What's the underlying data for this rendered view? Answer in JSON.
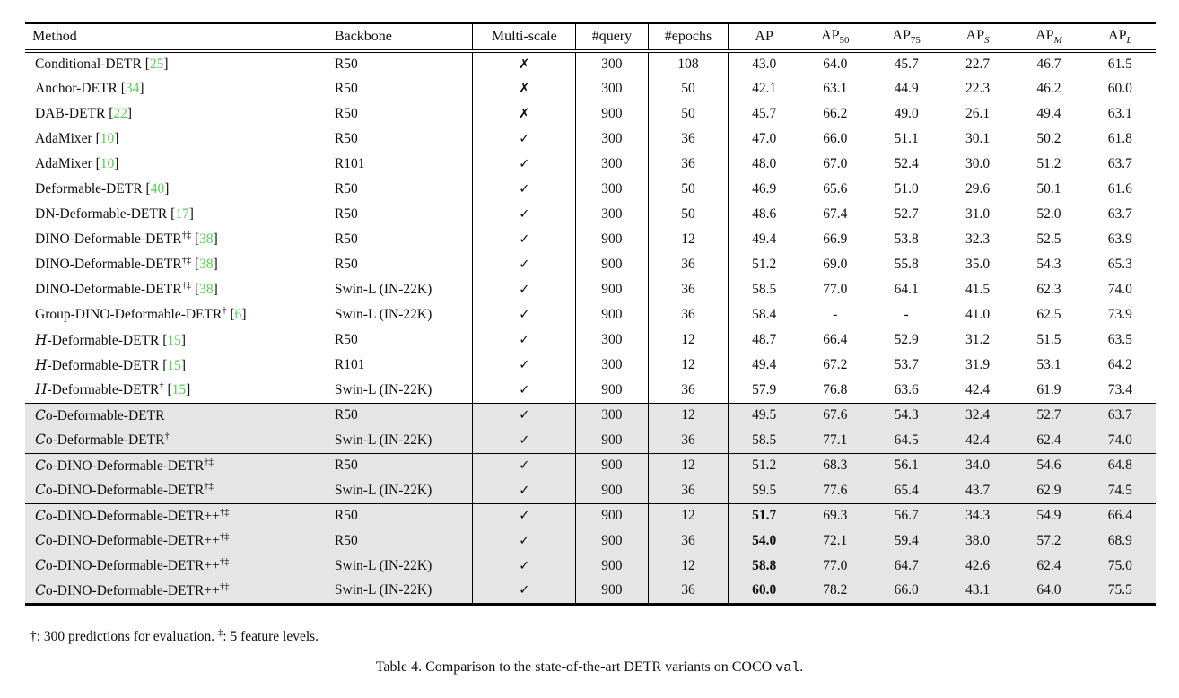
{
  "colors": {
    "citation_green": "#4fd24f",
    "row_shade": "#e5e5e5"
  },
  "table": {
    "check_glyph": "✓",
    "cross_glyph": "✗",
    "columns": [
      {
        "key": "method",
        "label": "Method",
        "sub": "",
        "sub_italic": false
      },
      {
        "key": "backbone",
        "label": "Backbone",
        "sub": "",
        "sub_italic": false
      },
      {
        "key": "multi_scale",
        "label": "Multi-scale",
        "sub": "",
        "sub_italic": false
      },
      {
        "key": "query",
        "label": "#query",
        "sub": "",
        "sub_italic": false
      },
      {
        "key": "epochs",
        "label": "#epochs",
        "sub": "",
        "sub_italic": false
      },
      {
        "key": "ap",
        "label": "AP",
        "sub": "",
        "sub_italic": false
      },
      {
        "key": "ap50",
        "label": "AP",
        "sub": "50",
        "sub_italic": false
      },
      {
        "key": "ap75",
        "label": "AP",
        "sub": "75",
        "sub_italic": false
      },
      {
        "key": "aps",
        "label": "AP",
        "sub": "S",
        "sub_italic": true
      },
      {
        "key": "apm",
        "label": "AP",
        "sub": "M",
        "sub_italic": true
      },
      {
        "key": "apl",
        "label": "AP",
        "sub": "L",
        "sub_italic": true
      }
    ],
    "rows": [
      {
        "script": "",
        "name": "Conditional-DETR",
        "sup": "",
        "cite": "25",
        "backbone": "R50",
        "multi_scale": false,
        "query": "300",
        "epochs": "108",
        "ap": "43.0",
        "ap_bold": false,
        "ap50": "64.0",
        "ap75": "45.7",
        "aps": "22.7",
        "apm": "46.7",
        "apl": "61.5",
        "shaded": false,
        "rule_above": false
      },
      {
        "script": "",
        "name": "Anchor-DETR",
        "sup": "",
        "cite": "34",
        "backbone": "R50",
        "multi_scale": false,
        "query": "300",
        "epochs": "50",
        "ap": "42.1",
        "ap_bold": false,
        "ap50": "63.1",
        "ap75": "44.9",
        "aps": "22.3",
        "apm": "46.2",
        "apl": "60.0",
        "shaded": false,
        "rule_above": false
      },
      {
        "script": "",
        "name": "DAB-DETR",
        "sup": "",
        "cite": "22",
        "backbone": "R50",
        "multi_scale": false,
        "query": "900",
        "epochs": "50",
        "ap": "45.7",
        "ap_bold": false,
        "ap50": "66.2",
        "ap75": "49.0",
        "aps": "26.1",
        "apm": "49.4",
        "apl": "63.1",
        "shaded": false,
        "rule_above": false
      },
      {
        "script": "",
        "name": "AdaMixer",
        "sup": "",
        "cite": "10",
        "backbone": "R50",
        "multi_scale": true,
        "query": "300",
        "epochs": "36",
        "ap": "47.0",
        "ap_bold": false,
        "ap50": "66.0",
        "ap75": "51.1",
        "aps": "30.1",
        "apm": "50.2",
        "apl": "61.8",
        "shaded": false,
        "rule_above": false
      },
      {
        "script": "",
        "name": "AdaMixer",
        "sup": "",
        "cite": "10",
        "backbone": "R101",
        "multi_scale": true,
        "query": "300",
        "epochs": "36",
        "ap": "48.0",
        "ap_bold": false,
        "ap50": "67.0",
        "ap75": "52.4",
        "aps": "30.0",
        "apm": "51.2",
        "apl": "63.7",
        "shaded": false,
        "rule_above": false
      },
      {
        "script": "",
        "name": "Deformable-DETR",
        "sup": "",
        "cite": "40",
        "backbone": "R50",
        "multi_scale": true,
        "query": "300",
        "epochs": "50",
        "ap": "46.9",
        "ap_bold": false,
        "ap50": "65.6",
        "ap75": "51.0",
        "aps": "29.6",
        "apm": "50.1",
        "apl": "61.6",
        "shaded": false,
        "rule_above": false
      },
      {
        "script": "",
        "name": "DN-Deformable-DETR",
        "sup": "",
        "cite": "17",
        "backbone": "R50",
        "multi_scale": true,
        "query": "300",
        "epochs": "50",
        "ap": "48.6",
        "ap_bold": false,
        "ap50": "67.4",
        "ap75": "52.7",
        "aps": "31.0",
        "apm": "52.0",
        "apl": "63.7",
        "shaded": false,
        "rule_above": false
      },
      {
        "script": "",
        "name": "DINO-Deformable-DETR",
        "sup": "†‡",
        "cite": "38",
        "backbone": "R50",
        "multi_scale": true,
        "query": "900",
        "epochs": "12",
        "ap": "49.4",
        "ap_bold": false,
        "ap50": "66.9",
        "ap75": "53.8",
        "aps": "32.3",
        "apm": "52.5",
        "apl": "63.9",
        "shaded": false,
        "rule_above": false
      },
      {
        "script": "",
        "name": "DINO-Deformable-DETR",
        "sup": "†‡",
        "cite": "38",
        "backbone": "R50",
        "multi_scale": true,
        "query": "900",
        "epochs": "36",
        "ap": "51.2",
        "ap_bold": false,
        "ap50": "69.0",
        "ap75": "55.8",
        "aps": "35.0",
        "apm": "54.3",
        "apl": "65.3",
        "shaded": false,
        "rule_above": false
      },
      {
        "script": "",
        "name": "DINO-Deformable-DETR",
        "sup": "†‡",
        "cite": "38",
        "backbone": "Swin-L (IN-22K)",
        "multi_scale": true,
        "query": "900",
        "epochs": "36",
        "ap": "58.5",
        "ap_bold": false,
        "ap50": "77.0",
        "ap75": "64.1",
        "aps": "41.5",
        "apm": "62.3",
        "apl": "74.0",
        "shaded": false,
        "rule_above": false
      },
      {
        "script": "",
        "name": "Group-DINO-Deformable-DETR",
        "sup": "†",
        "cite": "6",
        "backbone": "Swin-L (IN-22K)",
        "multi_scale": true,
        "query": "900",
        "epochs": "36",
        "ap": "58.4",
        "ap_bold": false,
        "ap50": "-",
        "ap75": "-",
        "aps": "41.0",
        "apm": "62.5",
        "apl": "73.9",
        "shaded": false,
        "rule_above": false
      },
      {
        "script": "H",
        "name": "-Deformable-DETR",
        "sup": "",
        "cite": "15",
        "backbone": "R50",
        "multi_scale": true,
        "query": "300",
        "epochs": "12",
        "ap": "48.7",
        "ap_bold": false,
        "ap50": "66.4",
        "ap75": "52.9",
        "aps": "31.2",
        "apm": "51.5",
        "apl": "63.5",
        "shaded": false,
        "rule_above": false
      },
      {
        "script": "H",
        "name": "-Deformable-DETR",
        "sup": "",
        "cite": "15",
        "backbone": "R101",
        "multi_scale": true,
        "query": "300",
        "epochs": "12",
        "ap": "49.4",
        "ap_bold": false,
        "ap50": "67.2",
        "ap75": "53.7",
        "aps": "31.9",
        "apm": "53.1",
        "apl": "64.2",
        "shaded": false,
        "rule_above": false
      },
      {
        "script": "H",
        "name": "-Deformable-DETR",
        "sup": "†",
        "cite": "15",
        "backbone": "Swin-L (IN-22K)",
        "multi_scale": true,
        "query": "900",
        "epochs": "36",
        "ap": "57.9",
        "ap_bold": false,
        "ap50": "76.8",
        "ap75": "63.6",
        "aps": "42.4",
        "apm": "61.9",
        "apl": "73.4",
        "shaded": false,
        "rule_above": false
      },
      {
        "script": "C",
        "name": "o-Deformable-DETR",
        "sup": "",
        "cite": "",
        "backbone": "R50",
        "multi_scale": true,
        "query": "300",
        "epochs": "12",
        "ap": "49.5",
        "ap_bold": false,
        "ap50": "67.6",
        "ap75": "54.3",
        "aps": "32.4",
        "apm": "52.7",
        "apl": "63.7",
        "shaded": true,
        "rule_above": true
      },
      {
        "script": "C",
        "name": "o-Deformable-DETR",
        "sup": "†",
        "cite": "",
        "backbone": "Swin-L (IN-22K)",
        "multi_scale": true,
        "query": "900",
        "epochs": "36",
        "ap": "58.5",
        "ap_bold": false,
        "ap50": "77.1",
        "ap75": "64.5",
        "aps": "42.4",
        "apm": "62.4",
        "apl": "74.0",
        "shaded": true,
        "rule_above": false
      },
      {
        "script": "C",
        "name": "o-DINO-Deformable-DETR",
        "sup": "†‡",
        "cite": "",
        "backbone": "R50",
        "multi_scale": true,
        "query": "900",
        "epochs": "12",
        "ap": "51.2",
        "ap_bold": false,
        "ap50": "68.3",
        "ap75": "56.1",
        "aps": "34.0",
        "apm": "54.6",
        "apl": "64.8",
        "shaded": true,
        "rule_above": true
      },
      {
        "script": "C",
        "name": "o-DINO-Deformable-DETR",
        "sup": "†‡",
        "cite": "",
        "backbone": "Swin-L (IN-22K)",
        "multi_scale": true,
        "query": "900",
        "epochs": "36",
        "ap": "59.5",
        "ap_bold": false,
        "ap50": "77.6",
        "ap75": "65.4",
        "aps": "43.7",
        "apm": "62.9",
        "apl": "74.5",
        "shaded": true,
        "rule_above": false
      },
      {
        "script": "C",
        "name": "o-DINO-Deformable-DETR++",
        "sup": "†‡",
        "cite": "",
        "backbone": "R50",
        "multi_scale": true,
        "query": "900",
        "epochs": "12",
        "ap": "51.7",
        "ap_bold": true,
        "ap50": "69.3",
        "ap75": "56.7",
        "aps": "34.3",
        "apm": "54.9",
        "apl": "66.4",
        "shaded": true,
        "rule_above": true
      },
      {
        "script": "C",
        "name": "o-DINO-Deformable-DETR++",
        "sup": "†‡",
        "cite": "",
        "backbone": "R50",
        "multi_scale": true,
        "query": "900",
        "epochs": "36",
        "ap": "54.0",
        "ap_bold": true,
        "ap50": "72.1",
        "ap75": "59.4",
        "aps": "38.0",
        "apm": "57.2",
        "apl": "68.9",
        "shaded": true,
        "rule_above": false
      },
      {
        "script": "C",
        "name": "o-DINO-Deformable-DETR++",
        "sup": "†‡",
        "cite": "",
        "backbone": "Swin-L (IN-22K)",
        "multi_scale": true,
        "query": "900",
        "epochs": "12",
        "ap": "58.8",
        "ap_bold": true,
        "ap50": "77.0",
        "ap75": "64.7",
        "aps": "42.6",
        "apm": "62.4",
        "apl": "75.0",
        "shaded": true,
        "rule_above": false
      },
      {
        "script": "C",
        "name": "o-DINO-Deformable-DETR++",
        "sup": "†‡",
        "cite": "",
        "backbone": "Swin-L (IN-22K)",
        "multi_scale": true,
        "query": "900",
        "epochs": "36",
        "ap": "60.0",
        "ap_bold": true,
        "ap50": "78.2",
        "ap75": "66.0",
        "aps": "43.1",
        "apm": "64.0",
        "apl": "75.5",
        "shaded": true,
        "rule_above": false
      }
    ]
  },
  "footnote": {
    "dagger_symbol": "†",
    "dagger_text": ": 300 predictions for evaluation. ",
    "ddagger_symbol": "‡",
    "ddagger_text": ": 5 feature levels."
  },
  "caption": {
    "text1": "Table 4. Comparison to the state-of-the-art DETR variants on COCO ",
    "code": "val",
    "text2": "."
  }
}
